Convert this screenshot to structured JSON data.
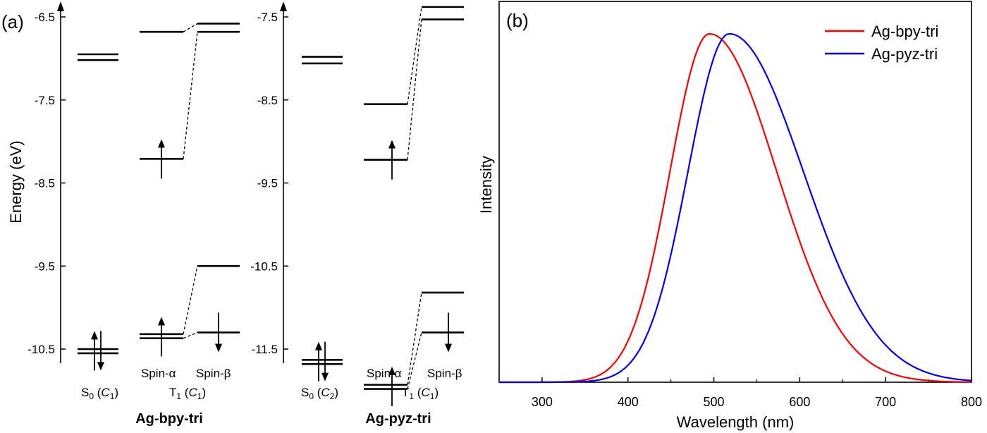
{
  "panel_a": {
    "label": "(a)",
    "ylabel": "Energy (eV)",
    "spin_alpha": "Spin-α",
    "spin_beta": "Spin-β",
    "left": {
      "name": "Ag-bpy-tri",
      "yticks": [
        "-6.5",
        "-7.5",
        "-8.5",
        "-9.5",
        "-10.5"
      ],
      "s0_state": "S",
      "s0_sub": "0",
      "s0_sym": "C",
      "s0_sym_sub": "1",
      "t1_state": "T",
      "t1_sub": "1",
      "t1_sym": "C",
      "t1_sym_sub": "1"
    },
    "right": {
      "name": "Ag-pyz-tri",
      "yticks": [
        "-7.5",
        "-8.5",
        "-9.5",
        "-10.5",
        "-11.5"
      ],
      "s0_state": "S",
      "s0_sub": "0",
      "s0_sym": "C",
      "s0_sym_sub": "2",
      "t1_state": "T",
      "t1_sub": "1",
      "t1_sym": "C",
      "t1_sym_sub": "1"
    }
  },
  "chart_data": [
    {
      "type": "level-diagram",
      "title": "Ag-bpy-tri",
      "ylabel": "Energy (eV)",
      "ylim": [
        -10.5,
        -6.5
      ],
      "s0_levels": [
        -6.95,
        -7.02,
        -10.5,
        -10.55
      ],
      "t1_spin_alpha": [
        -6.68,
        -8.21,
        -10.32,
        -10.37
      ],
      "t1_spin_beta": [
        -6.58,
        -6.68,
        -9.5,
        -10.3
      ]
    },
    {
      "type": "level-diagram",
      "title": "Ag-pyz-tri",
      "ylim": [
        -11.5,
        -7.5
      ],
      "s0_levels": [
        -7.98,
        -8.06,
        -11.63,
        -11.68
      ],
      "t1_spin_alpha": [
        -8.55,
        -9.22,
        -11.93,
        -11.98
      ],
      "t1_spin_beta": [
        -7.38,
        -7.53,
        -10.82,
        -11.3
      ]
    },
    {
      "type": "line",
      "panel_label": "(b)",
      "xlabel": "Wavelength (nm)",
      "ylabel": "Intensity",
      "xlim": [
        250,
        800
      ],
      "xticks": [
        "300",
        "400",
        "500",
        "600",
        "700",
        "800"
      ],
      "series": [
        {
          "name": "Ag-bpy-tri",
          "color": "#ff0000",
          "peak": 495,
          "x": [
            250,
            350,
            380,
            420,
            450,
            470,
            495,
            520,
            550,
            580,
            600,
            650,
            700,
            800
          ],
          "y": [
            0,
            0.0,
            0.03,
            0.2,
            0.5,
            0.8,
            1.0,
            0.9,
            0.7,
            0.48,
            0.36,
            0.14,
            0.05,
            0.0
          ]
        },
        {
          "name": "Ag-pyz-tri",
          "color": "#0000ff",
          "peak": 518,
          "x": [
            250,
            360,
            390,
            430,
            470,
            495,
            518,
            550,
            580,
            610,
            650,
            700,
            750,
            800
          ],
          "y": [
            0,
            0.0,
            0.03,
            0.2,
            0.62,
            0.88,
            1.0,
            0.88,
            0.68,
            0.48,
            0.26,
            0.1,
            0.03,
            0.0
          ]
        }
      ],
      "ylim": [
        0,
        1.0
      ],
      "legend": "top-right"
    }
  ]
}
